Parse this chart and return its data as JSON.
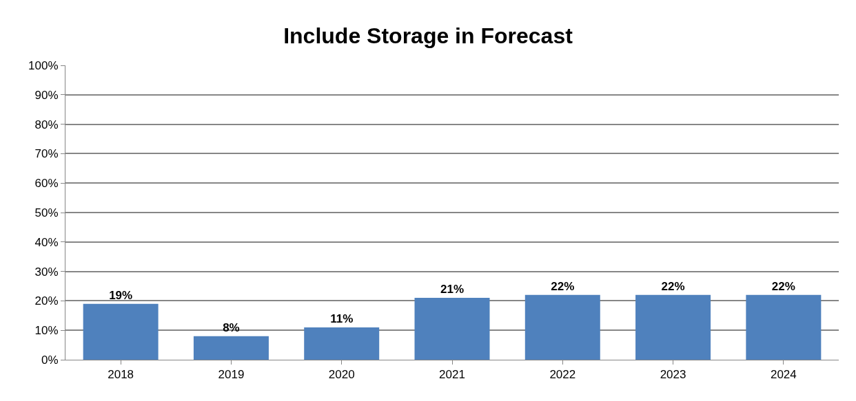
{
  "chart_data": {
    "type": "bar",
    "title": "Include Storage in Forecast",
    "categories": [
      "2018",
      "2019",
      "2020",
      "2021",
      "2022",
      "2023",
      "2024"
    ],
    "values": [
      19,
      8,
      11,
      21,
      22,
      22,
      22
    ],
    "value_labels": [
      "19%",
      "8%",
      "11%",
      "21%",
      "22%",
      "22%",
      "22%"
    ],
    "color": "#4f81bd",
    "ylim": [
      0,
      100
    ],
    "yticks": [
      {
        "value": 0,
        "label": "0%"
      },
      {
        "value": 10,
        "label": "10%"
      },
      {
        "value": 20,
        "label": "20%"
      },
      {
        "value": 30,
        "label": "30%"
      },
      {
        "value": 40,
        "label": "40%"
      },
      {
        "value": 50,
        "label": "50%"
      },
      {
        "value": 60,
        "label": "60%"
      },
      {
        "value": 70,
        "label": "70%"
      },
      {
        "value": 80,
        "label": "80%"
      },
      {
        "value": 90,
        "label": "90%"
      },
      {
        "value": 100,
        "label": "100%"
      }
    ],
    "grid": "y",
    "legend": false
  }
}
